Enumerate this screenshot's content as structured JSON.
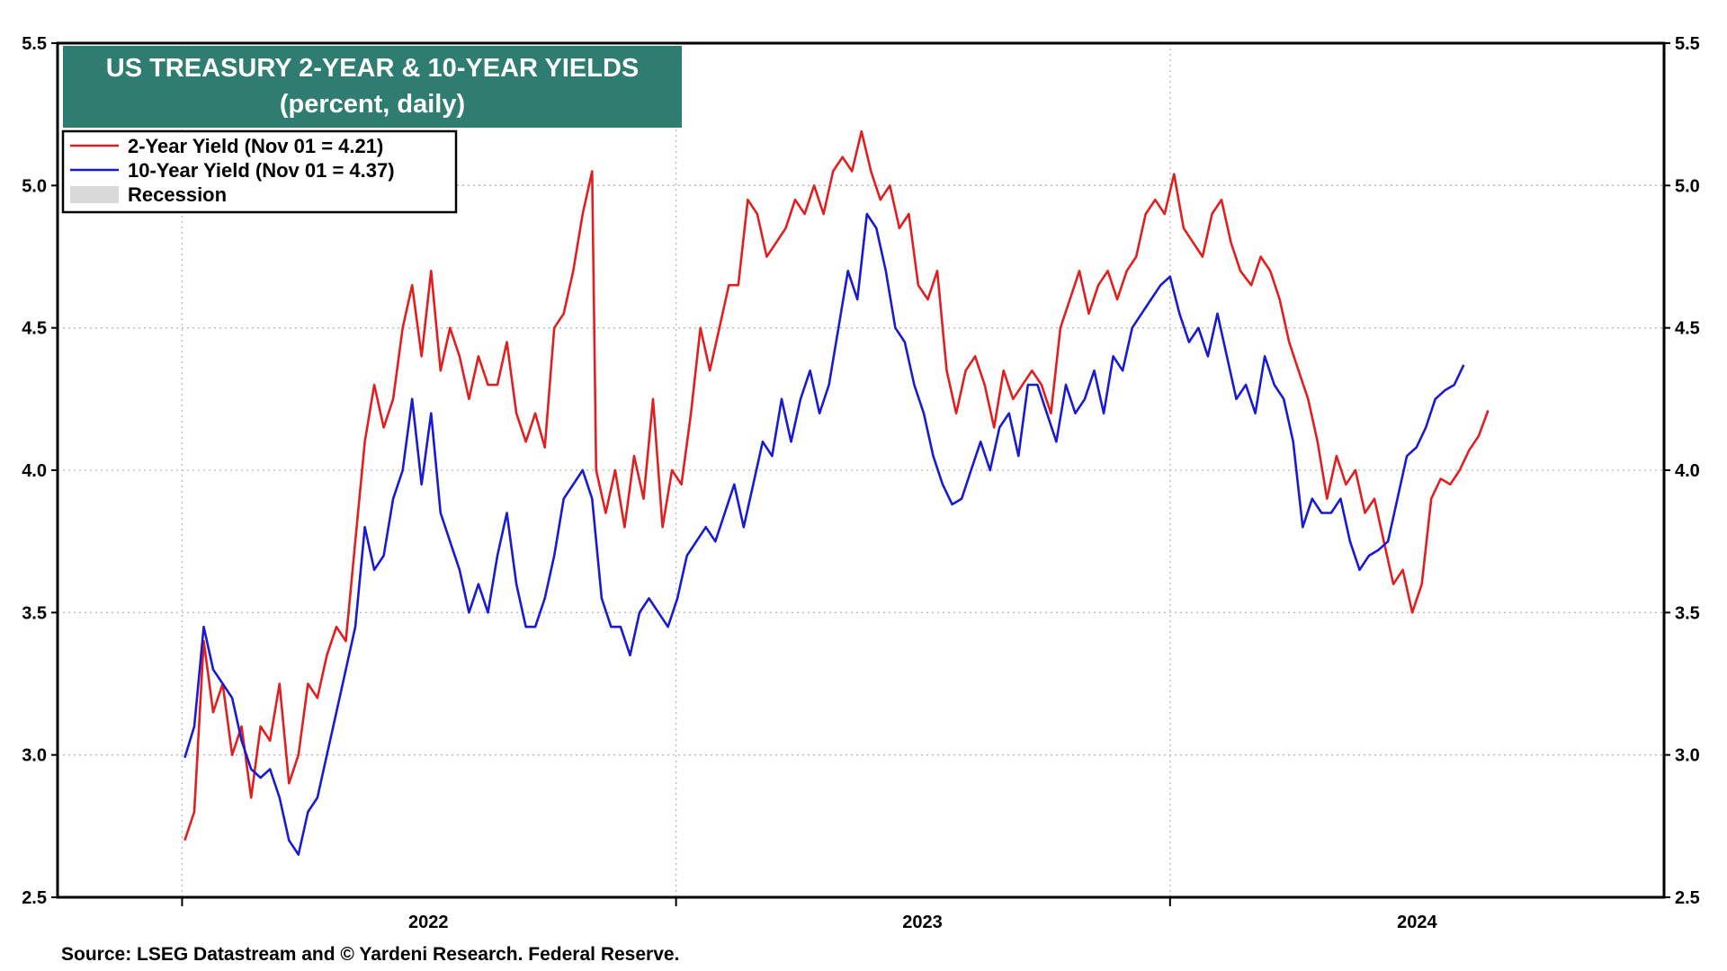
{
  "title": "US TREASURY 2-YEAR & 10-YEAR YIELDS",
  "subtitle": "(percent, daily)",
  "source": "Source: LSEG Datastream and © Yardeni Research. Federal Reserve.",
  "legend": [
    {
      "label": "2-Year Yield (Nov 01 = 4.21)",
      "color": "#e02020",
      "kind": "line"
    },
    {
      "label": "10-Year Yield (Nov 01 = 4.37)",
      "color": "#1a1ad0",
      "kind": "line"
    },
    {
      "label": "Recession",
      "color": "#d9d9d9",
      "kind": "box"
    }
  ],
  "chart_data": {
    "type": "line",
    "title": "US TREASURY 2-YEAR & 10-YEAR YIELDS",
    "subtitle": "(percent, daily)",
    "xlim": [
      "2021-10-01",
      "2024-12-31"
    ],
    "x_ticks": [
      "2022",
      "2023",
      "2024"
    ],
    "x_tick_positions": [
      "2022-01-01",
      "2023-01-01",
      "2024-01-01"
    ],
    "ylim": [
      2.5,
      5.5
    ],
    "y_ticks": [
      "2.5",
      "3.0",
      "3.5",
      "4.0",
      "4.5",
      "5.0",
      "5.5"
    ],
    "y_axis_both_sides": true,
    "grid": true,
    "legend_position": "top-left",
    "series": [
      {
        "name": "2-Year Yield (Nov 01 = 4.21)",
        "color": "#e02020",
        "points": [
          [
            "2022-01-03",
            2.7
          ],
          [
            "2022-01-10",
            2.8
          ],
          [
            "2022-01-17",
            3.4
          ],
          [
            "2022-01-24",
            3.15
          ],
          [
            "2022-01-31",
            3.25
          ],
          [
            "2022-02-07",
            3.0
          ],
          [
            "2022-02-14",
            3.1
          ],
          [
            "2022-02-21",
            2.85
          ],
          [
            "2022-02-28",
            3.1
          ],
          [
            "2022-03-07",
            3.05
          ],
          [
            "2022-03-14",
            3.25
          ],
          [
            "2022-03-21",
            2.9
          ],
          [
            "2022-03-28",
            3.0
          ],
          [
            "2022-04-04",
            3.25
          ],
          [
            "2022-04-11",
            3.2
          ],
          [
            "2022-04-18",
            3.35
          ],
          [
            "2022-04-25",
            3.45
          ],
          [
            "2022-05-02",
            3.4
          ],
          [
            "2022-05-09",
            3.75
          ],
          [
            "2022-05-16",
            4.1
          ],
          [
            "2022-05-23",
            4.3
          ],
          [
            "2022-05-30",
            4.15
          ],
          [
            "2022-06-06",
            4.25
          ],
          [
            "2022-06-13",
            4.5
          ],
          [
            "2022-06-20",
            4.65
          ],
          [
            "2022-06-27",
            4.4
          ],
          [
            "2022-07-04",
            4.7
          ],
          [
            "2022-07-11",
            4.35
          ],
          [
            "2022-07-18",
            4.5
          ],
          [
            "2022-07-25",
            4.4
          ],
          [
            "2022-08-01",
            4.25
          ],
          [
            "2022-08-08",
            4.4
          ],
          [
            "2022-08-15",
            4.3
          ],
          [
            "2022-08-22",
            4.3
          ],
          [
            "2022-08-29",
            4.45
          ],
          [
            "2022-09-05",
            4.2
          ],
          [
            "2022-09-12",
            4.1
          ],
          [
            "2022-09-19",
            4.2
          ],
          [
            "2022-09-26",
            4.08
          ],
          [
            "2022-10-03",
            4.5
          ],
          [
            "2022-10-10",
            4.55
          ],
          [
            "2022-10-17",
            4.7
          ],
          [
            "2022-10-24",
            4.9
          ],
          [
            "2022-10-31",
            5.05
          ],
          [
            "2022-11-03",
            4.0
          ],
          [
            "2022-11-10",
            3.85
          ],
          [
            "2022-11-17",
            4.0
          ],
          [
            "2022-11-24",
            3.8
          ],
          [
            "2022-12-01",
            4.05
          ],
          [
            "2022-12-08",
            3.9
          ],
          [
            "2022-12-15",
            4.25
          ],
          [
            "2022-12-22",
            3.8
          ],
          [
            "2022-12-29",
            4.0
          ],
          [
            "2023-01-05",
            3.95
          ],
          [
            "2023-01-12",
            4.2
          ],
          [
            "2023-01-19",
            4.5
          ],
          [
            "2023-01-26",
            4.35
          ],
          [
            "2023-02-02",
            4.5
          ],
          [
            "2023-02-09",
            4.65
          ],
          [
            "2023-02-16",
            4.65
          ],
          [
            "2023-02-23",
            4.95
          ],
          [
            "2023-03-02",
            4.9
          ],
          [
            "2023-03-09",
            4.75
          ],
          [
            "2023-03-16",
            4.8
          ],
          [
            "2023-03-23",
            4.85
          ],
          [
            "2023-03-30",
            4.95
          ],
          [
            "2023-04-06",
            4.9
          ],
          [
            "2023-04-13",
            5.0
          ],
          [
            "2023-04-20",
            4.9
          ],
          [
            "2023-04-27",
            5.05
          ],
          [
            "2023-05-04",
            5.1
          ],
          [
            "2023-05-11",
            5.05
          ],
          [
            "2023-05-18",
            5.19
          ],
          [
            "2023-05-25",
            5.05
          ],
          [
            "2023-06-01",
            4.95
          ],
          [
            "2023-06-08",
            5.0
          ],
          [
            "2023-06-15",
            4.85
          ],
          [
            "2023-06-22",
            4.9
          ],
          [
            "2023-06-29",
            4.65
          ],
          [
            "2023-07-06",
            4.6
          ],
          [
            "2023-07-13",
            4.7
          ],
          [
            "2023-07-20",
            4.35
          ],
          [
            "2023-07-27",
            4.2
          ],
          [
            "2023-08-03",
            4.35
          ],
          [
            "2023-08-10",
            4.4
          ],
          [
            "2023-08-17",
            4.3
          ],
          [
            "2023-08-24",
            4.15
          ],
          [
            "2023-08-31",
            4.35
          ],
          [
            "2023-09-07",
            4.25
          ],
          [
            "2023-09-14",
            4.3
          ],
          [
            "2023-09-21",
            4.35
          ],
          [
            "2023-09-28",
            4.3
          ],
          [
            "2023-10-05",
            4.2
          ],
          [
            "2023-10-12",
            4.5
          ],
          [
            "2023-10-19",
            4.6
          ],
          [
            "2023-10-26",
            4.7
          ],
          [
            "2023-11-02",
            4.55
          ],
          [
            "2023-11-09",
            4.65
          ],
          [
            "2023-11-16",
            4.7
          ],
          [
            "2023-11-23",
            4.6
          ],
          [
            "2023-11-30",
            4.7
          ],
          [
            "2023-12-07",
            4.75
          ],
          [
            "2023-12-14",
            4.9
          ],
          [
            "2023-12-21",
            4.95
          ],
          [
            "2023-12-28",
            4.9
          ],
          [
            "2024-01-04",
            5.04
          ],
          [
            "2024-01-11",
            4.85
          ],
          [
            "2024-01-18",
            4.8
          ],
          [
            "2024-01-25",
            4.75
          ],
          [
            "2024-02-01",
            4.9
          ],
          [
            "2024-02-08",
            4.95
          ],
          [
            "2024-02-15",
            4.8
          ],
          [
            "2024-02-22",
            4.7
          ],
          [
            "2024-03-01",
            4.65
          ],
          [
            "2024-03-08",
            4.75
          ],
          [
            "2024-03-15",
            4.7
          ],
          [
            "2024-03-22",
            4.6
          ],
          [
            "2024-03-29",
            4.45
          ],
          [
            "2024-04-05",
            4.35
          ],
          [
            "2024-04-12",
            4.25
          ],
          [
            "2024-04-19",
            4.1
          ],
          [
            "2024-04-26",
            3.9
          ],
          [
            "2024-05-03",
            4.05
          ],
          [
            "2024-05-10",
            3.95
          ],
          [
            "2024-05-17",
            4.0
          ],
          [
            "2024-05-24",
            3.85
          ],
          [
            "2024-05-31",
            3.9
          ],
          [
            "2024-06-07",
            3.75
          ],
          [
            "2024-06-14",
            3.6
          ],
          [
            "2024-06-21",
            3.65
          ],
          [
            "2024-06-28",
            3.5
          ],
          [
            "2024-07-05",
            3.6
          ],
          [
            "2024-07-12",
            3.9
          ],
          [
            "2024-07-19",
            3.97
          ],
          [
            "2024-07-26",
            3.95
          ],
          [
            "2024-08-02",
            4.0
          ],
          [
            "2024-08-09",
            4.07
          ],
          [
            "2024-08-16",
            4.12
          ],
          [
            "2024-08-23",
            4.21
          ]
        ]
      },
      {
        "name": "10-Year Yield (Nov 01 = 4.37)",
        "color": "#1a1ad0",
        "points": [
          [
            "2022-01-03",
            2.99
          ],
          [
            "2022-01-10",
            3.1
          ],
          [
            "2022-01-17",
            3.45
          ],
          [
            "2022-01-24",
            3.3
          ],
          [
            "2022-01-31",
            3.25
          ],
          [
            "2022-02-07",
            3.2
          ],
          [
            "2022-02-14",
            3.05
          ],
          [
            "2022-02-21",
            2.95
          ],
          [
            "2022-02-28",
            2.92
          ],
          [
            "2022-03-07",
            2.95
          ],
          [
            "2022-03-14",
            2.85
          ],
          [
            "2022-03-21",
            2.7
          ],
          [
            "2022-03-28",
            2.65
          ],
          [
            "2022-04-04",
            2.8
          ],
          [
            "2022-04-11",
            2.85
          ],
          [
            "2022-04-18",
            3.0
          ],
          [
            "2022-04-25",
            3.15
          ],
          [
            "2022-05-02",
            3.3
          ],
          [
            "2022-05-09",
            3.45
          ],
          [
            "2022-05-16",
            3.8
          ],
          [
            "2022-05-23",
            3.65
          ],
          [
            "2022-05-30",
            3.7
          ],
          [
            "2022-06-06",
            3.9
          ],
          [
            "2022-06-13",
            4.0
          ],
          [
            "2022-06-20",
            4.25
          ],
          [
            "2022-06-27",
            3.95
          ],
          [
            "2022-07-04",
            4.2
          ],
          [
            "2022-07-11",
            3.85
          ],
          [
            "2022-07-18",
            3.75
          ],
          [
            "2022-07-25",
            3.65
          ],
          [
            "2022-08-01",
            3.5
          ],
          [
            "2022-08-08",
            3.6
          ],
          [
            "2022-08-15",
            3.5
          ],
          [
            "2022-08-22",
            3.7
          ],
          [
            "2022-08-29",
            3.85
          ],
          [
            "2022-09-05",
            3.6
          ],
          [
            "2022-09-12",
            3.45
          ],
          [
            "2022-09-19",
            3.45
          ],
          [
            "2022-09-26",
            3.55
          ],
          [
            "2022-10-03",
            3.7
          ],
          [
            "2022-10-10",
            3.9
          ],
          [
            "2022-10-17",
            3.95
          ],
          [
            "2022-10-24",
            4.0
          ],
          [
            "2022-10-31",
            3.9
          ],
          [
            "2022-11-07",
            3.55
          ],
          [
            "2022-11-14",
            3.45
          ],
          [
            "2022-11-21",
            3.45
          ],
          [
            "2022-11-28",
            3.35
          ],
          [
            "2022-12-05",
            3.5
          ],
          [
            "2022-12-12",
            3.55
          ],
          [
            "2022-12-19",
            3.5
          ],
          [
            "2022-12-26",
            3.45
          ],
          [
            "2023-01-02",
            3.55
          ],
          [
            "2023-01-09",
            3.7
          ],
          [
            "2023-01-16",
            3.75
          ],
          [
            "2023-01-23",
            3.8
          ],
          [
            "2023-01-30",
            3.75
          ],
          [
            "2023-02-06",
            3.85
          ],
          [
            "2023-02-13",
            3.95
          ],
          [
            "2023-02-20",
            3.8
          ],
          [
            "2023-02-27",
            3.95
          ],
          [
            "2023-03-06",
            4.1
          ],
          [
            "2023-03-13",
            4.05
          ],
          [
            "2023-03-20",
            4.25
          ],
          [
            "2023-03-27",
            4.1
          ],
          [
            "2023-04-03",
            4.25
          ],
          [
            "2023-04-10",
            4.35
          ],
          [
            "2023-04-17",
            4.2
          ],
          [
            "2023-04-24",
            4.3
          ],
          [
            "2023-05-01",
            4.5
          ],
          [
            "2023-05-08",
            4.7
          ],
          [
            "2023-05-15",
            4.6
          ],
          [
            "2023-05-22",
            4.9
          ],
          [
            "2023-05-29",
            4.85
          ],
          [
            "2023-06-05",
            4.7
          ],
          [
            "2023-06-12",
            4.5
          ],
          [
            "2023-06-19",
            4.45
          ],
          [
            "2023-06-26",
            4.3
          ],
          [
            "2023-07-03",
            4.2
          ],
          [
            "2023-07-10",
            4.05
          ],
          [
            "2023-07-17",
            3.95
          ],
          [
            "2023-07-24",
            3.88
          ],
          [
            "2023-07-31",
            3.9
          ],
          [
            "2023-08-07",
            4.0
          ],
          [
            "2023-08-14",
            4.1
          ],
          [
            "2023-08-21",
            4.0
          ],
          [
            "2023-08-28",
            4.15
          ],
          [
            "2023-09-04",
            4.2
          ],
          [
            "2023-09-11",
            4.05
          ],
          [
            "2023-09-18",
            4.3
          ],
          [
            "2023-09-25",
            4.3
          ],
          [
            "2023-10-02",
            4.2
          ],
          [
            "2023-10-09",
            4.1
          ],
          [
            "2023-10-16",
            4.3
          ],
          [
            "2023-10-23",
            4.2
          ],
          [
            "2023-10-30",
            4.25
          ],
          [
            "2023-11-06",
            4.35
          ],
          [
            "2023-11-13",
            4.2
          ],
          [
            "2023-11-20",
            4.4
          ],
          [
            "2023-11-27",
            4.35
          ],
          [
            "2023-12-04",
            4.5
          ],
          [
            "2023-12-11",
            4.55
          ],
          [
            "2023-12-18",
            4.6
          ],
          [
            "2023-12-25",
            4.65
          ],
          [
            "2024-01-01",
            4.68
          ],
          [
            "2024-01-08",
            4.55
          ],
          [
            "2024-01-15",
            4.45
          ],
          [
            "2024-01-22",
            4.5
          ],
          [
            "2024-01-29",
            4.4
          ],
          [
            "2024-02-05",
            4.55
          ],
          [
            "2024-02-12",
            4.4
          ],
          [
            "2024-02-19",
            4.25
          ],
          [
            "2024-02-26",
            4.3
          ],
          [
            "2024-03-04",
            4.2
          ],
          [
            "2024-03-11",
            4.4
          ],
          [
            "2024-03-18",
            4.3
          ],
          [
            "2024-03-25",
            4.25
          ],
          [
            "2024-04-01",
            4.1
          ],
          [
            "2024-04-08",
            3.8
          ],
          [
            "2024-04-15",
            3.9
          ],
          [
            "2024-04-22",
            3.85
          ],
          [
            "2024-04-29",
            3.85
          ],
          [
            "2024-05-06",
            3.9
          ],
          [
            "2024-05-13",
            3.75
          ],
          [
            "2024-05-20",
            3.65
          ],
          [
            "2024-05-27",
            3.7
          ],
          [
            "2024-06-03",
            3.72
          ],
          [
            "2024-06-10",
            3.75
          ],
          [
            "2024-06-17",
            3.9
          ],
          [
            "2024-06-24",
            4.05
          ],
          [
            "2024-07-01",
            4.08
          ],
          [
            "2024-07-08",
            4.15
          ],
          [
            "2024-07-15",
            4.25
          ],
          [
            "2024-07-22",
            4.28
          ],
          [
            "2024-07-29",
            4.3
          ],
          [
            "2024-08-05",
            4.37
          ]
        ]
      }
    ]
  }
}
